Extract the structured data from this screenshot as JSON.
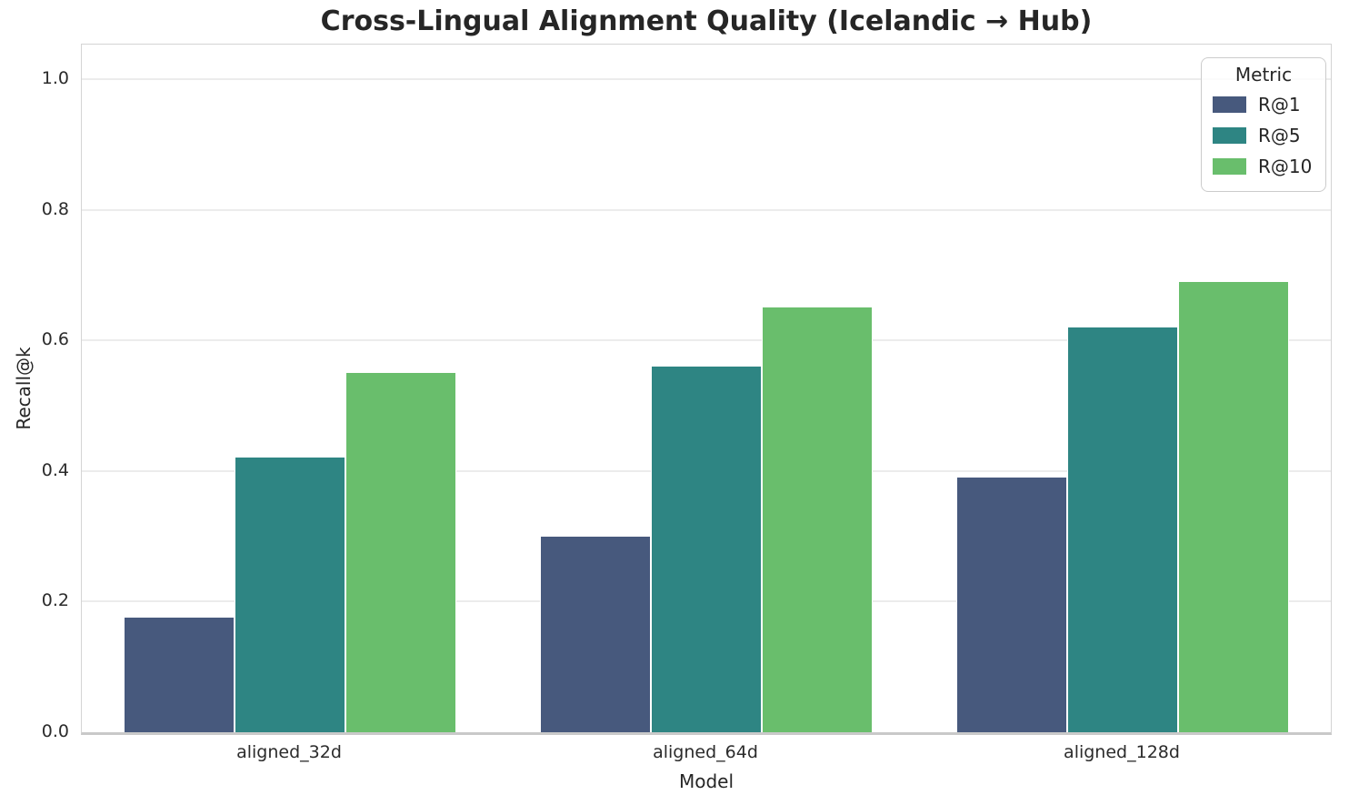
{
  "chart_data": {
    "type": "bar",
    "title": "Cross-Lingual Alignment Quality (Icelandic → Hub)",
    "xlabel": "Model",
    "ylabel": "Recall@k",
    "categories": [
      "aligned_32d",
      "aligned_64d",
      "aligned_128d"
    ],
    "series": [
      {
        "name": "R@1",
        "color": "#47597D",
        "values": [
          0.175,
          0.3,
          0.39
        ]
      },
      {
        "name": "R@5",
        "color": "#2E8583",
        "values": [
          0.42,
          0.56,
          0.62
        ]
      },
      {
        "name": "R@10",
        "color": "#69BE6C",
        "values": [
          0.55,
          0.65,
          0.69
        ]
      }
    ],
    "yticks": [
      0.0,
      0.2,
      0.4,
      0.6,
      0.8,
      1.0
    ],
    "ytick_labels": [
      "0.0",
      "0.2",
      "0.4",
      "0.6",
      "0.8",
      "1.0"
    ],
    "ylim": [
      0,
      1.05
    ],
    "grid": true,
    "group_width_fraction": 0.8,
    "legend": {
      "title": "Metric",
      "position": "upper right",
      "entries": [
        "R@1",
        "R@5",
        "R@10"
      ]
    }
  }
}
